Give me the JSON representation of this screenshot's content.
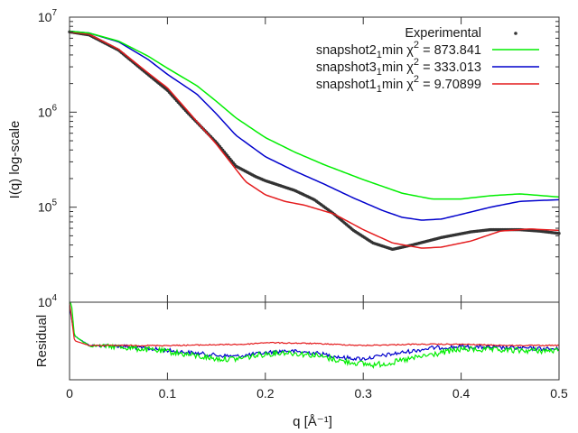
{
  "chart_data": [
    {
      "panel": "main",
      "type": "line",
      "xlabel": "q [Å⁻¹]",
      "ylabel": "I(q) log-scale",
      "xlim": [
        0,
        0.5
      ],
      "ylim": [
        10000,
        10000000
      ],
      "yscale": "log",
      "x_ticks": [
        0,
        0.1,
        0.2,
        0.3,
        0.4,
        0.5
      ],
      "x_tick_labels": [
        "0",
        "0.1",
        "0.2",
        "0.3",
        "0.4",
        "0.5"
      ],
      "y_ticks": [
        {
          "value": 10000,
          "base": "10",
          "exp": "4"
        },
        {
          "value": 100000,
          "base": "10",
          "exp": "5"
        },
        {
          "value": 1000000,
          "base": "10",
          "exp": "6"
        },
        {
          "value": 10000000,
          "base": "10",
          "exp": "7"
        }
      ],
      "legend_position": "top-right",
      "grid": false,
      "series": [
        {
          "name_parts": {
            "main": "Experimental"
          },
          "style": "points",
          "color": "#333333",
          "x": [
            0,
            0.02,
            0.05,
            0.08,
            0.1,
            0.12,
            0.15,
            0.17,
            0.19,
            0.2,
            0.23,
            0.25,
            0.27,
            0.29,
            0.31,
            0.33,
            0.35,
            0.38,
            0.41,
            0.43,
            0.46,
            0.48,
            0.5
          ],
          "y": [
            7000000,
            6500000,
            4500000,
            2500000,
            1700000,
            1000000,
            480000,
            270000,
            210000,
            190000,
            150000,
            120000,
            85000,
            57000,
            42000,
            36000,
            40000,
            48000,
            55000,
            58000,
            58000,
            56000,
            53000
          ]
        },
        {
          "name_parts": {
            "main": "snapshot1",
            "sub": "1",
            "rest": "min χ",
            "sup": "2",
            "tail": " = 9.70899"
          },
          "style": "line",
          "color": "#e41a1c",
          "x": [
            0,
            0.02,
            0.05,
            0.08,
            0.1,
            0.12,
            0.15,
            0.17,
            0.18,
            0.2,
            0.22,
            0.24,
            0.27,
            0.3,
            0.33,
            0.36,
            0.38,
            0.41,
            0.44,
            0.47,
            0.5
          ],
          "y": [
            7000000,
            6600000,
            4600000,
            2600000,
            1800000,
            1050000,
            460000,
            250000,
            185000,
            135000,
            115000,
            105000,
            85000,
            58000,
            42000,
            37000,
            38000,
            44000,
            56000,
            59000,
            57000
          ]
        },
        {
          "name_parts": {
            "main": "snapshot3",
            "sub": "1",
            "rest": "min χ",
            "sup": "2",
            "tail": " = 333.013"
          },
          "style": "line",
          "color": "#0000cc",
          "x": [
            0,
            0.02,
            0.05,
            0.08,
            0.1,
            0.13,
            0.15,
            0.17,
            0.2,
            0.23,
            0.26,
            0.29,
            0.32,
            0.34,
            0.36,
            0.38,
            0.4,
            0.43,
            0.46,
            0.5
          ],
          "y": [
            7100000,
            6800000,
            5500000,
            3600000,
            2500000,
            1550000,
            960000,
            570000,
            340000,
            240000,
            175000,
            125000,
            92000,
            78000,
            73000,
            75000,
            84000,
            100000,
            115000,
            120000
          ]
        },
        {
          "name_parts": {
            "main": "snapshot2",
            "sub": "1",
            "rest": "min χ",
            "sup": "2",
            "tail": " = 873.841"
          },
          "style": "line",
          "color": "#00ee00",
          "x": [
            0,
            0.02,
            0.05,
            0.08,
            0.1,
            0.13,
            0.15,
            0.17,
            0.2,
            0.23,
            0.26,
            0.3,
            0.34,
            0.37,
            0.4,
            0.43,
            0.46,
            0.5
          ],
          "y": [
            7100000,
            6800000,
            5600000,
            3900000,
            2900000,
            1900000,
            1300000,
            870000,
            540000,
            380000,
            280000,
            195000,
            140000,
            122000,
            122000,
            132000,
            138000,
            128000
          ]
        }
      ]
    },
    {
      "panel": "residual",
      "type": "line",
      "xlabel": "q [Å⁻¹]",
      "ylabel": "Residual",
      "xlim": [
        0,
        0.5
      ],
      "grid": false,
      "series": [
        {
          "ref": "snapshot1",
          "color": "#e41a1c",
          "x": [
            0,
            0.005,
            0.02,
            0.1,
            0.18,
            0.2,
            0.25,
            0.3,
            0.35,
            0.4,
            0.45,
            0.5
          ],
          "y": [
            1.8,
            0.2,
            0.0,
            0.0,
            0.05,
            0.12,
            0.08,
            0.0,
            0.05,
            0.05,
            0.0,
            0.0
          ]
        },
        {
          "ref": "snapshot3",
          "color": "#0000cc",
          "x": [
            0,
            0.005,
            0.02,
            0.05,
            0.1,
            0.15,
            0.17,
            0.2,
            0.22,
            0.25,
            0.28,
            0.3,
            0.33,
            0.37,
            0.4,
            0.45,
            0.5
          ],
          "y": [
            1.6,
            0.4,
            0.0,
            -0.02,
            -0.2,
            -0.4,
            -0.45,
            -0.3,
            -0.22,
            -0.3,
            -0.5,
            -0.55,
            -0.35,
            -0.1,
            -0.05,
            -0.1,
            -0.15
          ]
        },
        {
          "ref": "snapshot2",
          "color": "#00ee00",
          "x": [
            0,
            0.005,
            0.02,
            0.05,
            0.1,
            0.15,
            0.17,
            0.2,
            0.22,
            0.25,
            0.28,
            0.31,
            0.33,
            0.36,
            0.4,
            0.45,
            0.5
          ],
          "y": [
            2.6,
            0.4,
            0.0,
            -0.05,
            -0.25,
            -0.55,
            -0.55,
            -0.35,
            -0.28,
            -0.4,
            -0.65,
            -0.8,
            -0.7,
            -0.45,
            -0.15,
            -0.2,
            -0.22
          ]
        }
      ]
    }
  ]
}
